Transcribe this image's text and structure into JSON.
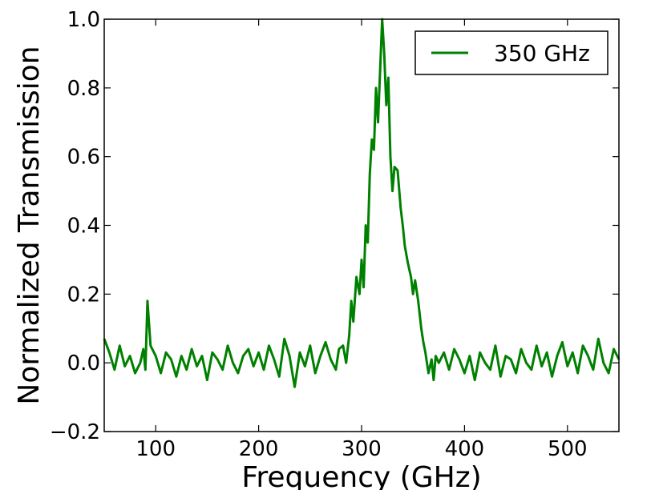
{
  "chart_data": {
    "type": "line",
    "xlabel": "Frequency (GHz)",
    "ylabel": "Normalized Transmission",
    "xlim": [
      50,
      550
    ],
    "ylim": [
      -0.2,
      1.0
    ],
    "x_ticks": [
      100,
      200,
      300,
      400,
      500
    ],
    "x_tick_labels": [
      "100",
      "200",
      "300",
      "400",
      "500"
    ],
    "y_ticks": [
      -0.2,
      0.0,
      0.2,
      0.4,
      0.6,
      0.8,
      1.0
    ],
    "y_tick_labels": [
      "−0.2",
      "0.0",
      "0.2",
      "0.4",
      "0.6",
      "0.8",
      "1.0"
    ],
    "grid": false,
    "legend": {
      "position": "top-right",
      "entries": [
        "350 GHz"
      ]
    },
    "series": [
      {
        "name": "350 GHz",
        "color": "#008000",
        "x": [
          50,
          55,
          60,
          65,
          70,
          75,
          80,
          85,
          88,
          90,
          92,
          95,
          100,
          105,
          110,
          115,
          120,
          125,
          130,
          135,
          140,
          145,
          150,
          155,
          160,
          165,
          170,
          175,
          180,
          185,
          190,
          195,
          200,
          205,
          210,
          215,
          220,
          225,
          230,
          235,
          240,
          245,
          250,
          255,
          260,
          265,
          270,
          275,
          278,
          282,
          285,
          288,
          290,
          292,
          295,
          298,
          300,
          302,
          304,
          306,
          308,
          310,
          312,
          314,
          316,
          318,
          320,
          322,
          324,
          326,
          328,
          330,
          332,
          335,
          338,
          340,
          342,
          345,
          348,
          350,
          352,
          355,
          358,
          360,
          362,
          365,
          368,
          370,
          372,
          375,
          380,
          385,
          390,
          395,
          400,
          405,
          410,
          415,
          420,
          425,
          430,
          435,
          440,
          445,
          450,
          455,
          460,
          465,
          470,
          475,
          480,
          485,
          490,
          495,
          500,
          505,
          510,
          515,
          520,
          525,
          530,
          535,
          540,
          545,
          550
        ],
        "values": [
          0.07,
          0.03,
          -0.02,
          0.05,
          -0.01,
          0.02,
          -0.03,
          0.0,
          0.04,
          -0.02,
          0.18,
          0.05,
          0.02,
          -0.03,
          0.03,
          0.01,
          -0.04,
          0.02,
          -0.02,
          0.04,
          -0.01,
          0.02,
          -0.05,
          0.03,
          0.01,
          -0.02,
          0.05,
          0.0,
          -0.03,
          0.02,
          0.04,
          -0.01,
          0.03,
          -0.02,
          0.05,
          0.01,
          -0.04,
          0.07,
          0.02,
          -0.07,
          0.03,
          -0.01,
          0.05,
          -0.03,
          0.02,
          0.06,
          0.01,
          -0.02,
          0.04,
          0.05,
          0.0,
          0.08,
          0.18,
          0.12,
          0.25,
          0.2,
          0.3,
          0.22,
          0.4,
          0.35,
          0.55,
          0.65,
          0.62,
          0.8,
          0.7,
          0.85,
          1.0,
          0.9,
          0.75,
          0.83,
          0.6,
          0.5,
          0.57,
          0.56,
          0.45,
          0.4,
          0.34,
          0.29,
          0.25,
          0.2,
          0.24,
          0.18,
          0.1,
          0.06,
          0.03,
          -0.03,
          0.01,
          -0.05,
          0.02,
          0.0,
          0.03,
          -0.02,
          0.04,
          0.01,
          -0.03,
          0.02,
          -0.05,
          0.03,
          0.0,
          -0.02,
          0.05,
          -0.04,
          0.02,
          0.01,
          -0.03,
          0.04,
          0.0,
          -0.02,
          0.05,
          -0.01,
          0.03,
          -0.04,
          0.02,
          0.06,
          -0.01,
          0.03,
          -0.03,
          0.05,
          0.02,
          -0.02,
          0.07,
          0.0,
          -0.03,
          0.04,
          0.01
        ]
      }
    ]
  }
}
